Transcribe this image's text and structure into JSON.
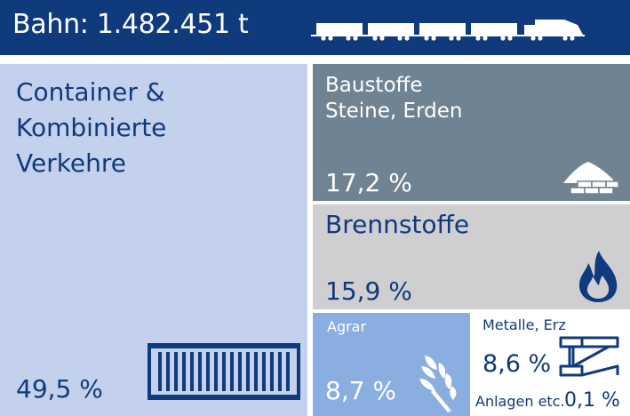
{
  "header": {
    "title": "Bahn: 1.482.451 t",
    "icon": "freight-train-icon"
  },
  "colors": {
    "header_bg": "#0f3a7c",
    "container": "#c4d1ec",
    "baustoffe": "#6f8392",
    "brennstoffe": "#cfcfd2",
    "agrar": "#8aaee0",
    "metalle": "#ffffff",
    "anlagen": "#ffffff",
    "text_dark": "#0f3a7c",
    "text_light": "#ffffff"
  },
  "chart_data": {
    "type": "treemap",
    "title": "Bahn: 1.482.451 t",
    "total": "1.482.451 t",
    "segments": [
      {
        "name": "Container & Kombinierte Verkehre",
        "name_lines": [
          "Container &",
          "Kombinierte",
          "Verkehre"
        ],
        "value": 49.5,
        "label": "49,5 %",
        "icon": "shipping-container-icon"
      },
      {
        "name": "Baustoffe Steine, Erden",
        "name_lines": [
          "Baustoffe",
          "Steine, Erden"
        ],
        "value": 17.2,
        "label": "17,2 %",
        "icon": "sand-bricks-icon"
      },
      {
        "name": "Brennstoffe",
        "name_lines": [
          "Brennstoffe"
        ],
        "value": 15.9,
        "label": "15,9 %",
        "icon": "flame-icon"
      },
      {
        "name": "Agrar",
        "name_lines": [
          "Agrar"
        ],
        "value": 8.7,
        "label": "8,7 %",
        "icon": "wheat-icon"
      },
      {
        "name": "Metalle, Erz",
        "name_lines": [
          "Metalle, Erz"
        ],
        "value": 8.6,
        "label": "8,6 %",
        "icon": "steel-beam-icon"
      },
      {
        "name": "Anlagen etc.",
        "name_lines": [
          "Anlagen etc."
        ],
        "value": 0.1,
        "label": "0,1 %",
        "icon": ""
      }
    ]
  }
}
